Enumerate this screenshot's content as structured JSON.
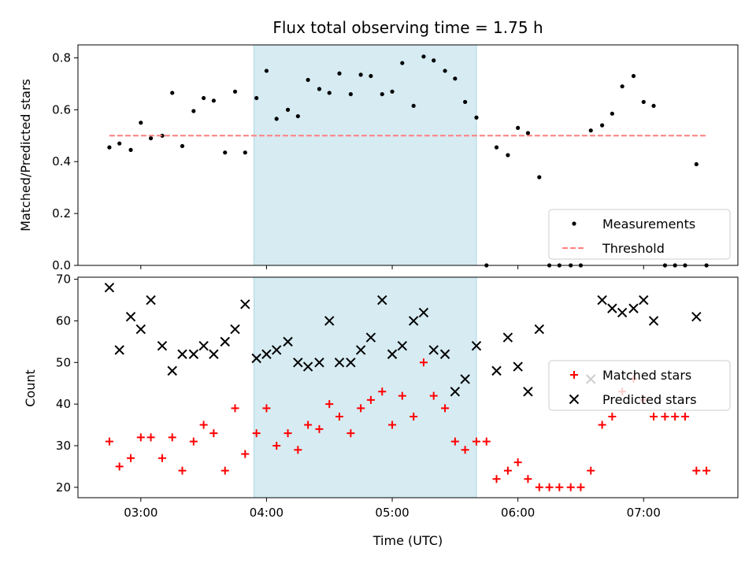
{
  "chart_data": {
    "type": "scatter",
    "title": "Flux total observing time = 1.75 h",
    "xlabel": "Time (UTC)",
    "x_range_hours": [
      2.5,
      7.75
    ],
    "x_ticks": [
      {
        "h": 3,
        "label": "03:00"
      },
      {
        "h": 4,
        "label": "04:00"
      },
      {
        "h": 5,
        "label": "05:00"
      },
      {
        "h": 6,
        "label": "06:00"
      },
      {
        "h": 7,
        "label": "07:00"
      }
    ],
    "highlight_span_hours": [
      3.9,
      5.67
    ],
    "highlight_color": "#add8e6",
    "panels": [
      {
        "ylabel": "Matched/Predicted stars",
        "ylim": [
          0,
          0.85
        ],
        "yticks": [
          {
            "v": 0.0,
            "label": "0.0"
          },
          {
            "v": 0.2,
            "label": "0.2"
          },
          {
            "v": 0.4,
            "label": "0.4"
          },
          {
            "v": 0.6,
            "label": "0.6"
          },
          {
            "v": 0.8,
            "label": "0.8"
          }
        ],
        "legend_position": "lower-right",
        "series": [
          {
            "name": "Measurements",
            "marker": "dot",
            "color": "#000000",
            "x": [
              2.75,
              2.83,
              2.92,
              3.0,
              3.08,
              3.17,
              3.25,
              3.33,
              3.42,
              3.5,
              3.58,
              3.67,
              3.75,
              3.83,
              3.92,
              4.0,
              4.08,
              4.17,
              4.25,
              4.33,
              4.42,
              4.5,
              4.58,
              4.67,
              4.75,
              4.83,
              4.92,
              5.0,
              5.08,
              5.17,
              5.25,
              5.33,
              5.42,
              5.5,
              5.58,
              5.67,
              5.75,
              5.83,
              5.92,
              6.0,
              6.08,
              6.17,
              6.25,
              6.33,
              6.42,
              6.5,
              6.58,
              6.67,
              6.75,
              6.83,
              6.92,
              7.0,
              7.08,
              7.17,
              7.25,
              7.33,
              7.42,
              7.5
            ],
            "y": [
              0.455,
              0.47,
              0.445,
              0.55,
              0.49,
              0.5,
              0.665,
              0.46,
              0.595,
              0.645,
              0.635,
              0.435,
              0.67,
              0.435,
              0.645,
              0.75,
              0.565,
              0.6,
              0.575,
              0.715,
              0.68,
              0.665,
              0.74,
              0.66,
              0.735,
              0.73,
              0.66,
              0.67,
              0.78,
              0.615,
              0.805,
              0.79,
              0.75,
              0.72,
              0.63,
              0.57,
              0.0,
              0.455,
              0.425,
              0.53,
              0.51,
              0.34,
              0.0,
              0.0,
              0.0,
              0.0,
              0.52,
              0.54,
              0.585,
              0.69,
              0.73,
              0.63,
              0.615,
              0.0,
              0.0,
              0.0,
              0.39,
              0.0
            ]
          },
          {
            "name": "Threshold",
            "marker": "dashed-line",
            "color": "#ff7f7f",
            "x": [
              2.75,
              7.5
            ],
            "y": [
              0.5,
              0.5
            ]
          }
        ]
      },
      {
        "ylabel": "Count",
        "ylim": [
          17.5,
          70.5
        ],
        "yticks": [
          {
            "v": 20,
            "label": "20"
          },
          {
            "v": 30,
            "label": "30"
          },
          {
            "v": 40,
            "label": "40"
          },
          {
            "v": 50,
            "label": "50"
          },
          {
            "v": 60,
            "label": "60"
          },
          {
            "v": 70,
            "label": "70"
          }
        ],
        "legend_position": "center-right",
        "series": [
          {
            "name": "Matched stars",
            "marker": "plus",
            "color": "#ff0000",
            "x": [
              2.75,
              2.83,
              2.92,
              3.0,
              3.08,
              3.17,
              3.25,
              3.33,
              3.42,
              3.5,
              3.58,
              3.67,
              3.75,
              3.83,
              3.92,
              4.0,
              4.08,
              4.17,
              4.25,
              4.33,
              4.42,
              4.5,
              4.58,
              4.67,
              4.75,
              4.83,
              4.92,
              5.0,
              5.08,
              5.17,
              5.25,
              5.33,
              5.42,
              5.5,
              5.58,
              5.67,
              5.75,
              5.83,
              5.92,
              6.0,
              6.08,
              6.17,
              6.25,
              6.33,
              6.42,
              6.5,
              6.58,
              6.67,
              6.75,
              6.83,
              6.92,
              7.0,
              7.08,
              7.17,
              7.25,
              7.33,
              7.42,
              7.5
            ],
            "y": [
              31,
              25,
              27,
              32,
              32,
              27,
              32,
              24,
              31,
              35,
              33,
              24,
              39,
              28,
              33,
              39,
              30,
              33,
              29,
              35,
              34,
              40,
              37,
              33,
              39,
              41,
              43,
              35,
              42,
              37,
              50,
              42,
              39,
              31,
              29,
              31,
              31,
              22,
              24,
              26,
              22,
              20,
              20,
              20,
              20,
              20,
              24,
              35,
              37,
              43,
              46,
              41,
              37,
              37,
              37,
              37,
              24,
              24
            ]
          },
          {
            "name": "Predicted stars",
            "marker": "x",
            "color": "#000000",
            "x": [
              2.75,
              2.83,
              2.92,
              3.0,
              3.08,
              3.17,
              3.25,
              3.33,
              3.42,
              3.5,
              3.58,
              3.67,
              3.75,
              3.83,
              3.92,
              4.0,
              4.08,
              4.17,
              4.25,
              4.33,
              4.42,
              4.5,
              4.58,
              4.67,
              4.75,
              4.83,
              4.92,
              5.0,
              5.08,
              5.17,
              5.25,
              5.33,
              5.42,
              5.5,
              5.58,
              5.67,
              5.83,
              5.92,
              6.0,
              6.08,
              6.17,
              6.58,
              6.67,
              6.75,
              6.83,
              6.92,
              7.0,
              7.08,
              7.42
            ],
            "y": [
              68,
              53,
              61,
              58,
              65,
              54,
              48,
              52,
              52,
              54,
              52,
              55,
              58,
              64,
              51,
              52,
              53,
              55,
              50,
              49,
              50,
              60,
              50,
              50,
              53,
              56,
              65,
              52,
              54,
              60,
              62,
              53,
              52,
              43,
              46,
              54,
              48,
              56,
              49,
              43,
              58,
              46,
              65,
              63,
              62,
              63,
              65,
              60,
              61
            ]
          }
        ]
      }
    ]
  }
}
